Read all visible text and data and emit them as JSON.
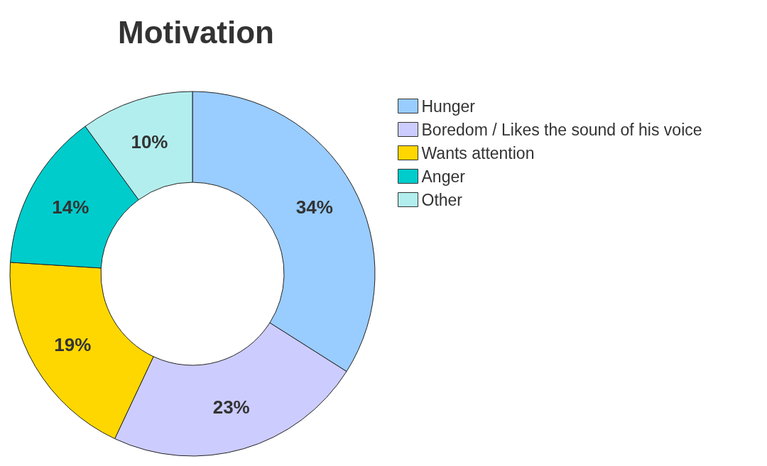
{
  "chart_data": {
    "type": "donut",
    "title": "Motivation",
    "categories": [
      "Hunger",
      "Boredom / Likes the sound of his voice",
      "Wants attention",
      "Anger",
      "Other"
    ],
    "values": [
      34,
      23,
      19,
      14,
      10
    ],
    "value_labels": [
      "34%",
      "23%",
      "19%",
      "14%",
      "10%"
    ],
    "colors": [
      "#99ccff",
      "#ccccff",
      "#ffd700",
      "#00cccc",
      "#b3eeee"
    ],
    "legend": "right"
  }
}
